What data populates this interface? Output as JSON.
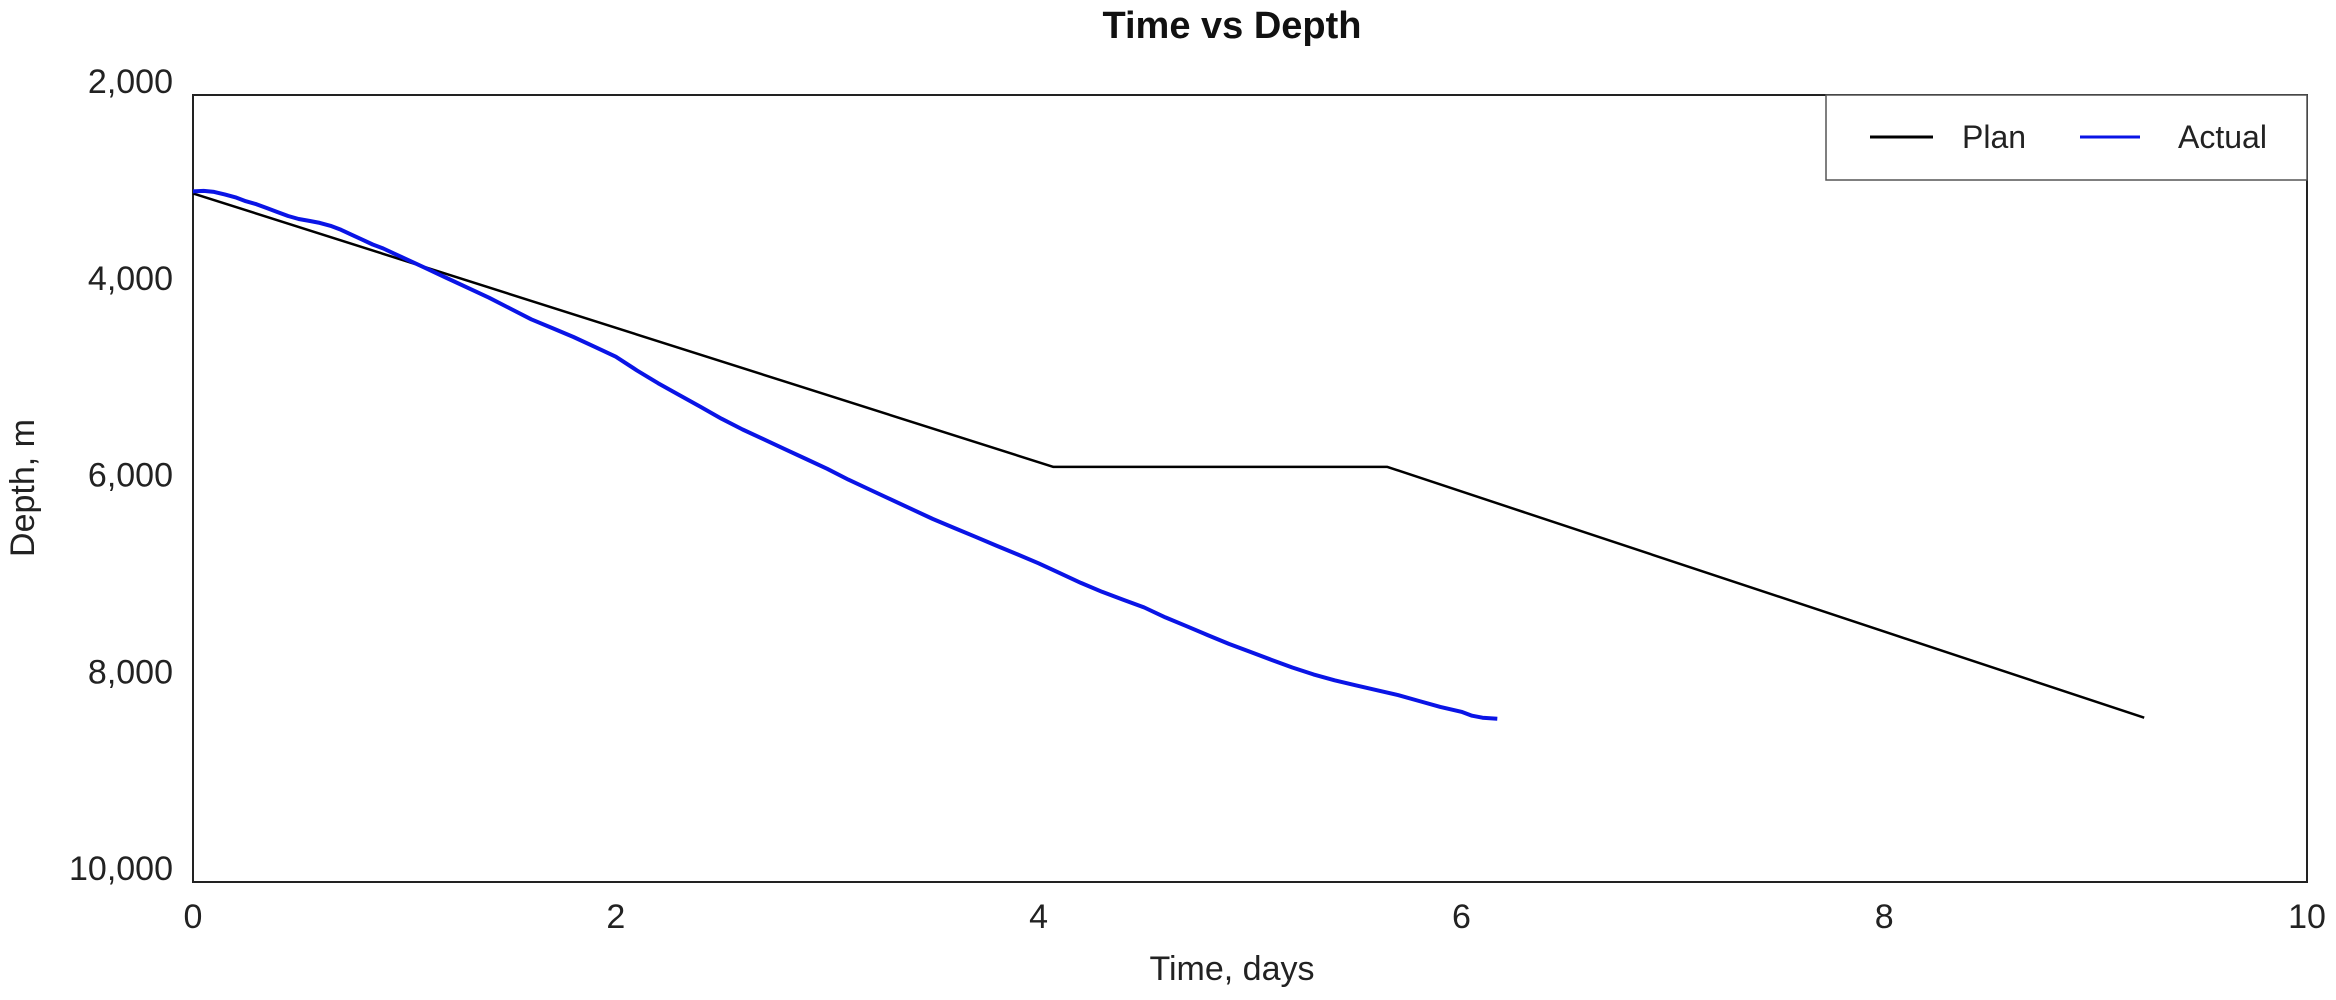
{
  "chart_data": {
    "type": "line",
    "title": "Time vs Depth",
    "xlabel": "Time, days",
    "ylabel": "Depth, m",
    "xlim": [
      0,
      10
    ],
    "ylim": [
      2000,
      10000
    ],
    "y_inverted": true,
    "x_ticks": [
      0,
      2,
      4,
      6,
      8,
      10
    ],
    "x_tick_labels": [
      "0",
      "2",
      "4",
      "6",
      "8",
      "10"
    ],
    "y_ticks": [
      2000,
      4000,
      6000,
      8000,
      10000
    ],
    "y_tick_labels": [
      "2,000",
      "4,000",
      "6,000",
      "8,000",
      "10,000"
    ],
    "grid": false,
    "legend_position": "top-right",
    "series": [
      {
        "name": "Plan",
        "color": "#000000",
        "x": [
          0,
          4.07,
          5.65,
          9.23
        ],
        "y": [
          3000,
          5780,
          5780,
          8330
        ]
      },
      {
        "name": "Actual",
        "color": "#0a14e6",
        "x": [
          0,
          0.05,
          0.1,
          0.15,
          0.2,
          0.25,
          0.3,
          0.35,
          0.4,
          0.45,
          0.5,
          0.55,
          0.6,
          0.65,
          0.7,
          0.75,
          0.8,
          0.85,
          0.9,
          0.95,
          1.0,
          1.05,
          1.1,
          1.15,
          1.2,
          1.3,
          1.4,
          1.5,
          1.6,
          1.7,
          1.8,
          1.9,
          2.0,
          2.1,
          2.2,
          2.3,
          2.4,
          2.5,
          2.6,
          2.7,
          2.8,
          2.9,
          3.0,
          3.1,
          3.2,
          3.3,
          3.4,
          3.5,
          3.6,
          3.7,
          3.8,
          3.9,
          4.0,
          4.1,
          4.2,
          4.3,
          4.4,
          4.5,
          4.6,
          4.7,
          4.8,
          4.9,
          5.0,
          5.1,
          5.2,
          5.3,
          5.4,
          5.5,
          5.6,
          5.7,
          5.8,
          5.9,
          6.0,
          6.05,
          6.1,
          6.17
        ],
        "y": [
          2980,
          2975,
          2985,
          3010,
          3040,
          3080,
          3110,
          3150,
          3190,
          3230,
          3260,
          3280,
          3300,
          3330,
          3370,
          3420,
          3470,
          3520,
          3560,
          3610,
          3660,
          3710,
          3760,
          3810,
          3860,
          3960,
          4060,
          4170,
          4280,
          4370,
          4460,
          4560,
          4660,
          4800,
          4930,
          5050,
          5170,
          5290,
          5400,
          5500,
          5600,
          5700,
          5800,
          5910,
          6010,
          6110,
          6210,
          6310,
          6400,
          6490,
          6580,
          6670,
          6760,
          6860,
          6960,
          7050,
          7130,
          7210,
          7310,
          7400,
          7490,
          7580,
          7660,
          7740,
          7820,
          7890,
          7950,
          8000,
          8050,
          8100,
          8160,
          8220,
          8270,
          8310,
          8330,
          8340
        ]
      }
    ]
  }
}
